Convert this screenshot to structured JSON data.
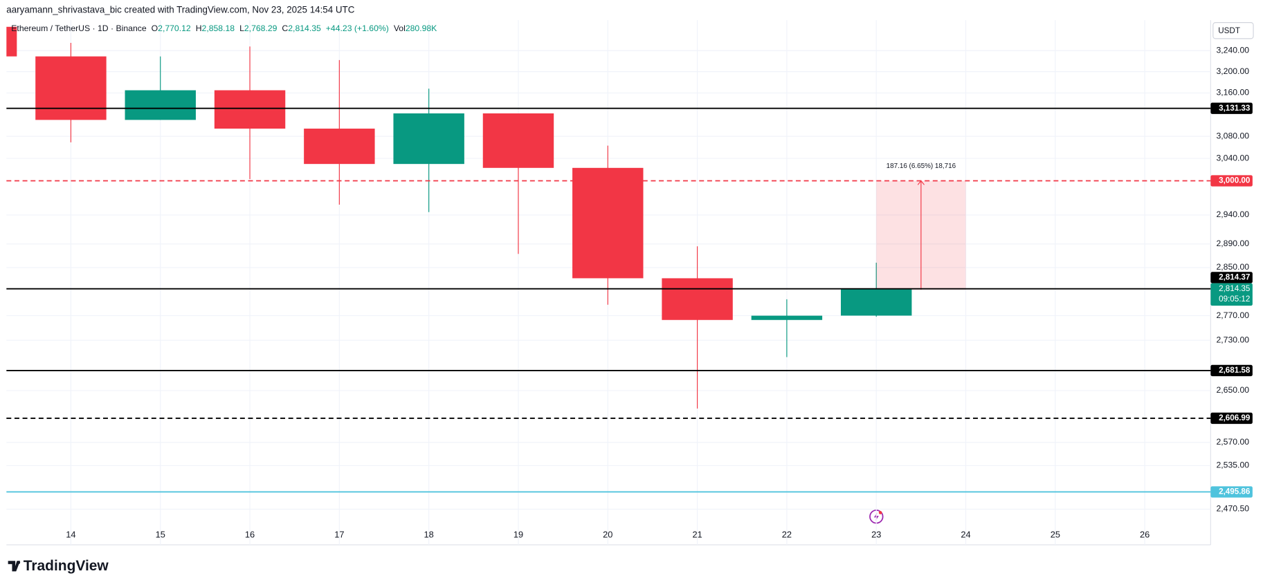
{
  "attribution": "aaryamann_shrivastava_bic created with TradingView.com, Nov 23, 2025 14:54 UTC",
  "brand": "TradingView",
  "chart_data": {
    "type": "candlestick",
    "legend": {
      "symbol": "Ethereum / TetherUS · 1D · Binance",
      "fields": [
        {
          "key": "O",
          "value": "2,770.12"
        },
        {
          "key": "H",
          "value": "2,858.18"
        },
        {
          "key": "L",
          "value": "2,768.29"
        },
        {
          "key": "C",
          "value": "2,814.35"
        }
      ],
      "change": "+44.23 (+1.60%)",
      "volume_key": "Vol",
      "volume": "280.98K"
    },
    "currency": "USDT",
    "categories": [
      null,
      "14",
      "15",
      "16",
      "17",
      "18",
      "19",
      "20",
      "21",
      "22",
      "23",
      "24",
      "25",
      "26"
    ],
    "open": [
      3286,
      3229,
      3110,
      3165,
      3094,
      3030,
      3122,
      3023,
      2832,
      2763,
      2770.12,
      null,
      null,
      null
    ],
    "high": [
      3286,
      3255,
      3229,
      3248,
      3222,
      3168,
      3122,
      3063,
      2886,
      2797,
      2858.18,
      null,
      null,
      null
    ],
    "low": [
      3229,
      3069,
      3110,
      3003,
      2958,
      2945,
      2873,
      2788,
      2622,
      2703,
      2768.29,
      null,
      null,
      null
    ],
    "close": [
      3229,
      3110,
      3165,
      3094,
      3030,
      3122,
      3023,
      2832,
      2763,
      2770,
      2814.35,
      null,
      null,
      null
    ],
    "up_color": "#089981",
    "down_color": "#f23645",
    "log_scale": true,
    "grid": true,
    "ylim": [
      2419,
      3299
    ],
    "yticks": [
      {
        "value": 3240,
        "label": "3,240.00"
      },
      {
        "value": 3200,
        "label": "3,200.00"
      },
      {
        "value": 3160,
        "label": "3,160.00"
      },
      {
        "value": 3080,
        "label": "3,080.00"
      },
      {
        "value": 3040,
        "label": "3,040.00"
      },
      {
        "value": 2940,
        "label": "2,940.00"
      },
      {
        "value": 2890,
        "label": "2,890.00"
      },
      {
        "value": 2850,
        "label": "2,850.00"
      },
      {
        "value": 2770,
        "label": "2,770.00"
      },
      {
        "value": 2730,
        "label": "2,730.00"
      },
      {
        "value": 2650,
        "label": "2,650.00"
      },
      {
        "value": 2570,
        "label": "2,570.00"
      },
      {
        "value": 2535,
        "label": "2,535.00"
      },
      {
        "value": 2470.5,
        "label": "2,470.50"
      }
    ],
    "levels": [
      {
        "value": 3131.33,
        "label": "3,131.33",
        "color": "#000000",
        "style": "solid"
      },
      {
        "value": 3000,
        "label": "3,000.00",
        "color": "#f23645",
        "style": "dashed"
      },
      {
        "value": 2814.37,
        "label": "2,814.37",
        "color": "#000000",
        "style": "solid"
      },
      {
        "value": 2681.58,
        "label": "2,681.58",
        "color": "#000000",
        "style": "solid"
      },
      {
        "value": 2606.99,
        "label": "2,606.99",
        "color": "#000000",
        "style": "dashed"
      },
      {
        "value": 2495.86,
        "label": "2,495.86",
        "color": "#4fc3dd",
        "style": "solid"
      }
    ],
    "last_price": {
      "value": 2814.35,
      "label": "2,814.35",
      "countdown": "09:05:12"
    },
    "measure": {
      "start": 2812.84,
      "end": 3000,
      "from": "23",
      "to": "24",
      "label": "187.16 (6.65%) 18,716"
    }
  }
}
